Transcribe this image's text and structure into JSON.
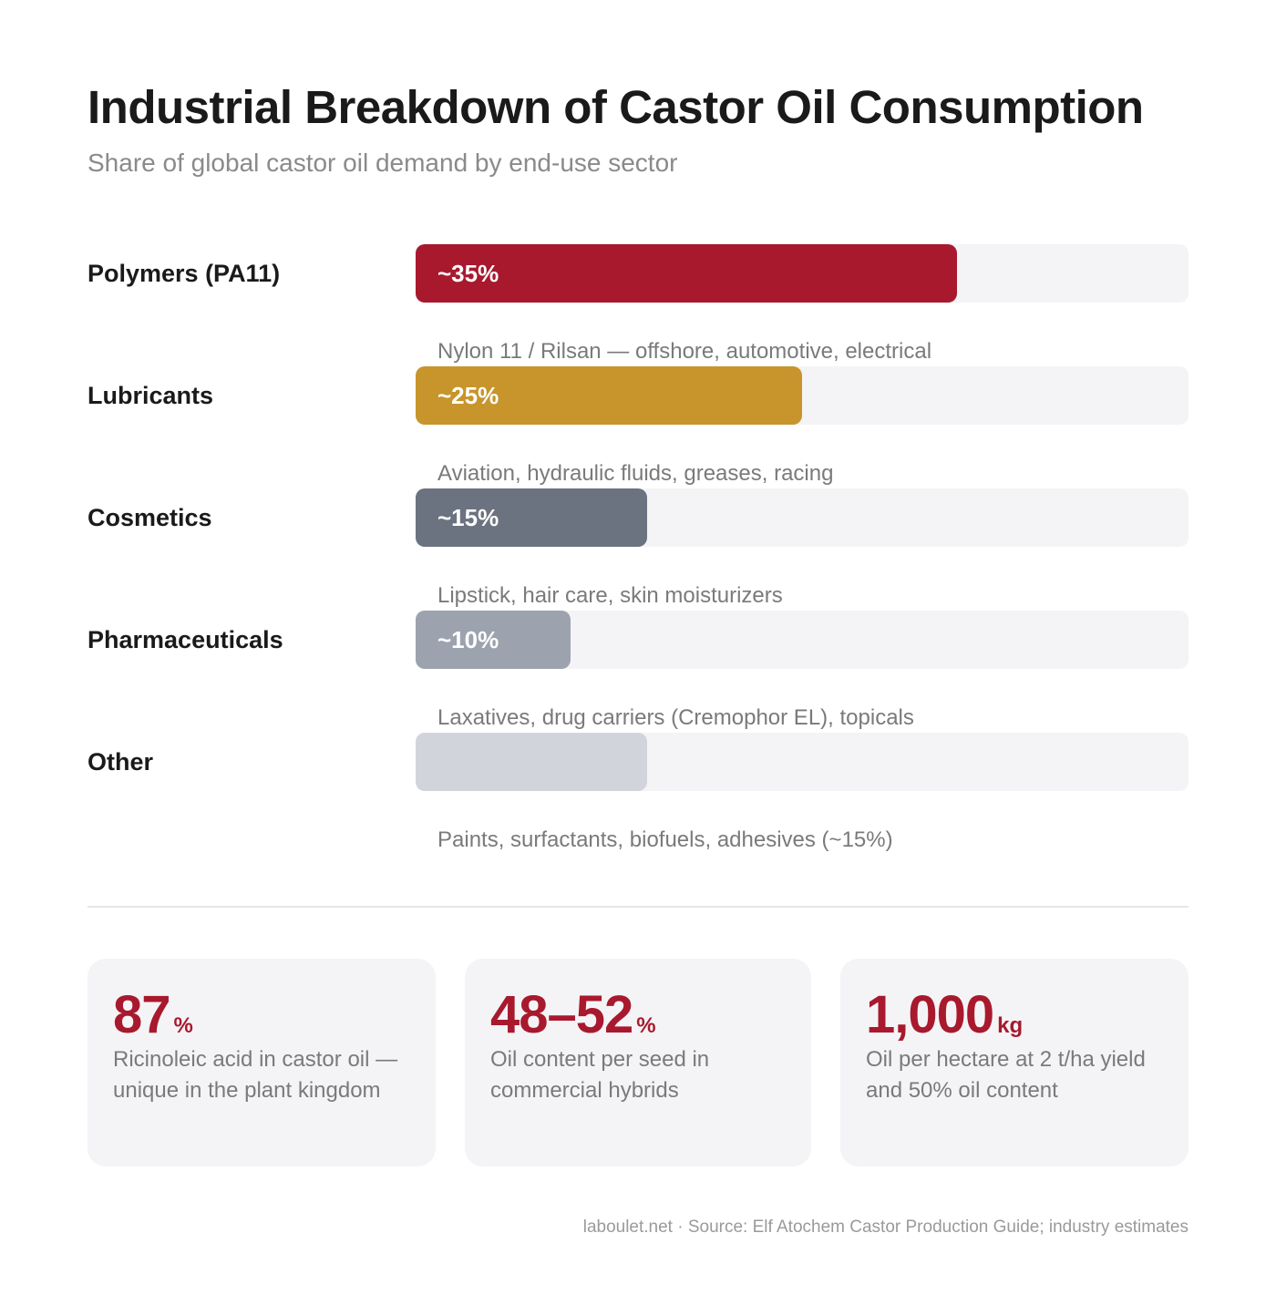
{
  "title": "Industrial Breakdown of Castor Oil Consumption",
  "subtitle": "Share of global castor oil demand by end-use sector",
  "chart_data": {
    "type": "bar",
    "orientation": "horizontal",
    "title": "Industrial Breakdown of Castor Oil Consumption",
    "subtitle": "Share of global castor oil demand by end-use sector",
    "categories": [
      "Polymers (PA11)",
      "Lubricants",
      "Cosmetics",
      "Pharmaceuticals",
      "Other"
    ],
    "values": [
      35,
      25,
      15,
      10,
      15
    ],
    "xlim": [
      0,
      50
    ],
    "grid": false,
    "data_labels": [
      "~35%",
      "~25%",
      "~15%",
      "~10%",
      ""
    ],
    "descriptions": [
      "Nylon 11 / Rilsan — offshore, automotive, electrical",
      "Aviation, hydraulic fluids, greases, racing",
      "Lipstick, hair care, skin moisturizers",
      "Laxatives, drug carriers (Cremophor EL), topicals",
      "Paints, surfactants, biofuels, adhesives (~15%)"
    ],
    "colors": [
      "#a8192e",
      "#c8952c",
      "#6b7280",
      "#9ca3af",
      "#d1d5db"
    ],
    "track_color": "#f4f4f6"
  },
  "stats": [
    {
      "value": "87",
      "unit": "%",
      "desc": "Ricinoleic acid in castor oil — unique in the plant kingdom"
    },
    {
      "value": "48–52",
      "unit": "%",
      "desc": "Oil content per seed in commercial hybrids"
    },
    {
      "value": "1,000",
      "unit": "kg",
      "desc": "Oil per hectare at 2 t/ha yield and 50% oil content"
    }
  ],
  "footer": "laboulet.net · Source: Elf Atochem Castor Production Guide; industry estimates",
  "accent_color": "#a8192e"
}
